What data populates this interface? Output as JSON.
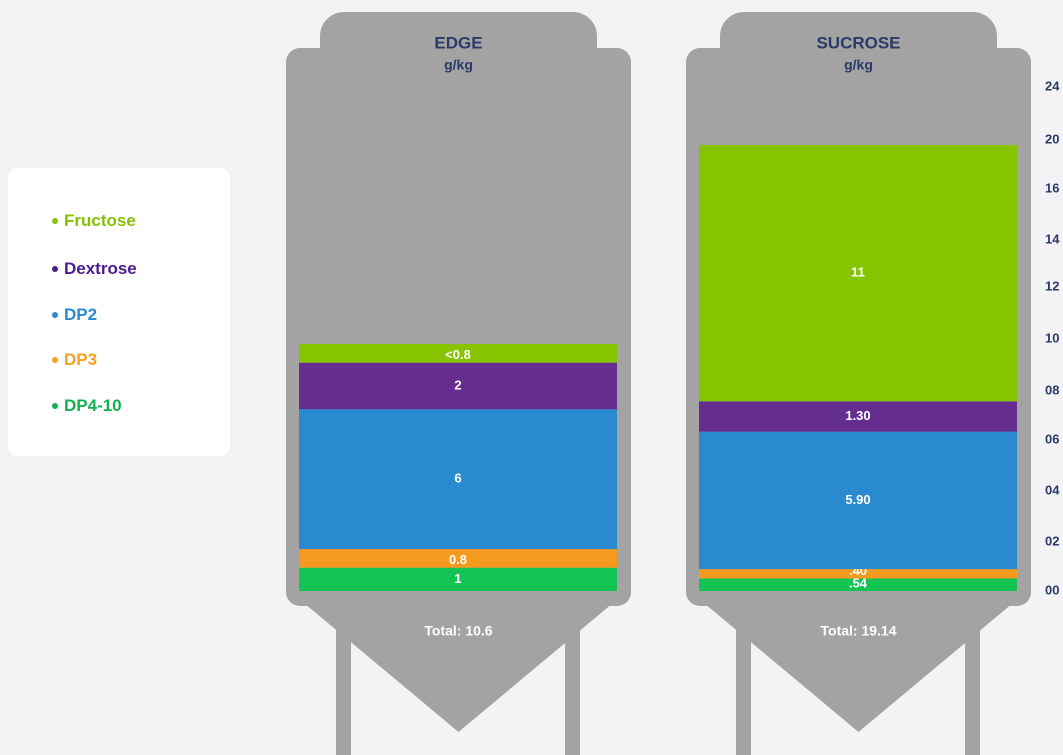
{
  "colors": {
    "tank": "#a3a3a3",
    "background": "#f3f3f5",
    "title_text": "#2b3a67",
    "axis_text": "#2b3a67",
    "segment_text": "#ffffff"
  },
  "legend": {
    "items": [
      {
        "label": "Fructose",
        "color": "#86c200"
      },
      {
        "label": "Dextrose",
        "color": "#4b1b8f"
      },
      {
        "label": "DP2",
        "color": "#2a8ad0"
      },
      {
        "label": "DP3",
        "color": "#f5a020"
      },
      {
        "label": "DP4-10",
        "color": "#12b04d"
      }
    ]
  },
  "chart_data": {
    "type": "bar",
    "stacked": true,
    "series_order": [
      "DP4-10",
      "DP3",
      "DP2",
      "Dextrose",
      "Fructose"
    ],
    "series_colors": {
      "DP4-10": "#13c455",
      "DP3": "#f59a1e",
      "DP2": "#2a8ad0",
      "Dextrose": "#662d91",
      "Fructose": "#86c400"
    },
    "ylim": [
      0,
      24
    ],
    "yticks": [
      {
        "value": 0,
        "label": "00"
      },
      {
        "value": 2,
        "label": "02"
      },
      {
        "value": 4,
        "label": "04"
      },
      {
        "value": 6,
        "label": "06"
      },
      {
        "value": 8,
        "label": "08"
      },
      {
        "value": 10,
        "label": "10"
      },
      {
        "value": 12,
        "label": "12"
      },
      {
        "value": 14,
        "label": "14"
      },
      {
        "value": 16,
        "label": "16"
      },
      {
        "value": 20,
        "label": "20"
      },
      {
        "value": 24,
        "label": "24"
      }
    ],
    "columns": [
      {
        "name": "EDGE",
        "unit": "g/kg",
        "total_label": "Total: 10.6",
        "segments": [
          {
            "series": "DP4-10",
            "value": 1,
            "label": "1"
          },
          {
            "series": "DP3",
            "value": 0.8,
            "label": "0.8"
          },
          {
            "series": "DP2",
            "value": 6,
            "label": "6"
          },
          {
            "series": "Dextrose",
            "value": 2,
            "label": "2"
          },
          {
            "series": "Fructose",
            "value": 0.8,
            "label": "<0.8"
          }
        ]
      },
      {
        "name": "SUCROSE",
        "unit": "g/kg",
        "total_label": "Total: 19.14",
        "segments": [
          {
            "series": "DP4-10",
            "value": 0.54,
            "label": ".54"
          },
          {
            "series": "DP3",
            "value": 0.4,
            "label": ".40"
          },
          {
            "series": "DP2",
            "value": 5.9,
            "label": "5.90"
          },
          {
            "series": "Dextrose",
            "value": 1.3,
            "label": "1.30"
          },
          {
            "series": "Fructose",
            "value": 11,
            "label": "11"
          }
        ]
      }
    ]
  }
}
